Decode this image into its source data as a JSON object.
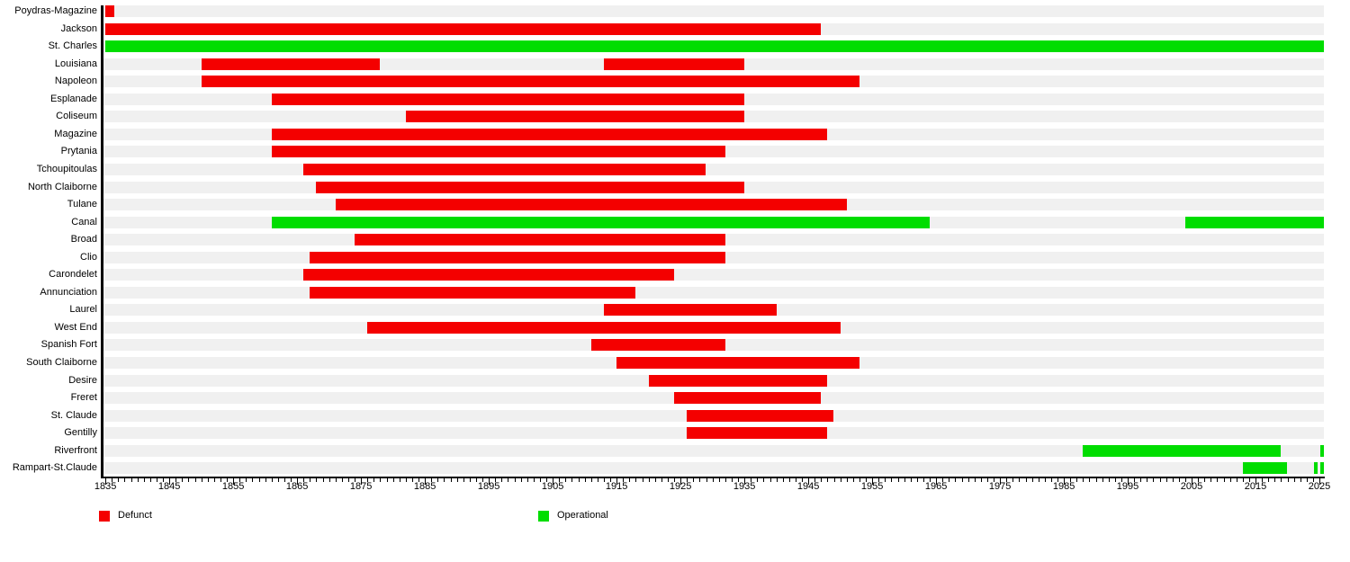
{
  "legend": {
    "defunct": {
      "label": "Defunct",
      "color": "#f40000"
    },
    "operational": {
      "label": "Operational",
      "color": "#00dd00"
    }
  },
  "chart_data": {
    "type": "bar",
    "subtype": "gantt-timeline",
    "title": "",
    "xlabel": "",
    "ylabel": "",
    "grid": false,
    "legend_position": "bottom",
    "axis": {
      "unit": "year",
      "plot_min": 1834.7,
      "plot_max": 2025.7,
      "major_tick_interval": 10,
      "minor_tick_interval": 1,
      "tick_labels": [
        "1835",
        "1845",
        "1855",
        "1865",
        "1875",
        "1885",
        "1895",
        "1905",
        "1915",
        "1925",
        "1935",
        "1945",
        "1955",
        "1965",
        "1975",
        "1985",
        "1995",
        "2005",
        "2015",
        "2025"
      ]
    },
    "rows": [
      {
        "label": "Poydras-Magazine",
        "segments": [
          {
            "start": 1835,
            "end": 1836.4,
            "status": "defunct"
          }
        ]
      },
      {
        "label": "Jackson",
        "segments": [
          {
            "start": 1835,
            "end": 1947,
            "status": "defunct"
          }
        ]
      },
      {
        "label": "St. Charles",
        "segments": [
          {
            "start": 1835,
            "end": "present",
            "status": "operational"
          }
        ]
      },
      {
        "label": "Louisiana",
        "segments": [
          {
            "start": 1850,
            "end": 1878,
            "status": "defunct"
          },
          {
            "start": 1913,
            "end": 1935,
            "status": "defunct"
          }
        ]
      },
      {
        "label": "Napoleon",
        "segments": [
          {
            "start": 1850,
            "end": 1953,
            "status": "defunct"
          }
        ]
      },
      {
        "label": "Esplanade",
        "segments": [
          {
            "start": 1861,
            "end": 1935,
            "status": "defunct"
          }
        ]
      },
      {
        "label": "Coliseum",
        "segments": [
          {
            "start": 1882,
            "end": 1935,
            "status": "defunct"
          }
        ]
      },
      {
        "label": "Magazine",
        "segments": [
          {
            "start": 1861,
            "end": 1948,
            "status": "defunct"
          }
        ]
      },
      {
        "label": "Prytania",
        "segments": [
          {
            "start": 1861,
            "end": 1932,
            "status": "defunct"
          }
        ]
      },
      {
        "label": "Tchoupitoulas",
        "segments": [
          {
            "start": 1866,
            "end": 1929,
            "status": "defunct"
          }
        ]
      },
      {
        "label": "North Claiborne",
        "segments": [
          {
            "start": 1868,
            "end": 1935,
            "status": "defunct"
          }
        ]
      },
      {
        "label": "Tulane",
        "segments": [
          {
            "start": 1871,
            "end": 1951,
            "status": "defunct"
          }
        ]
      },
      {
        "label": "Canal",
        "segments": [
          {
            "start": 1861,
            "end": 1964,
            "status": "operational"
          },
          {
            "start": 2004,
            "end": "present",
            "status": "operational"
          }
        ]
      },
      {
        "label": "Broad",
        "segments": [
          {
            "start": 1874,
            "end": 1932,
            "status": "defunct"
          }
        ]
      },
      {
        "label": "Clio",
        "segments": [
          {
            "start": 1867,
            "end": 1932,
            "status": "defunct"
          }
        ]
      },
      {
        "label": "Carondelet",
        "segments": [
          {
            "start": 1866,
            "end": 1924,
            "status": "defunct"
          }
        ]
      },
      {
        "label": "Annunciation",
        "segments": [
          {
            "start": 1867,
            "end": 1918,
            "status": "defunct"
          }
        ]
      },
      {
        "label": "Laurel",
        "segments": [
          {
            "start": 1913,
            "end": 1940,
            "status": "defunct"
          }
        ]
      },
      {
        "label": "West End",
        "segments": [
          {
            "start": 1876,
            "end": 1950,
            "status": "defunct"
          }
        ]
      },
      {
        "label": "Spanish Fort",
        "segments": [
          {
            "start": 1911,
            "end": 1932,
            "status": "defunct"
          }
        ]
      },
      {
        "label": "South Claiborne",
        "segments": [
          {
            "start": 1915,
            "end": 1953,
            "status": "defunct"
          }
        ]
      },
      {
        "label": "Desire",
        "segments": [
          {
            "start": 1920,
            "end": 1948,
            "status": "defunct"
          }
        ]
      },
      {
        "label": "Freret",
        "segments": [
          {
            "start": 1924,
            "end": 1947,
            "status": "defunct"
          }
        ]
      },
      {
        "label": "St. Claude",
        "segments": [
          {
            "start": 1926,
            "end": 1949,
            "status": "defunct"
          }
        ]
      },
      {
        "label": "Gentilly",
        "segments": [
          {
            "start": 1926,
            "end": 1948,
            "status": "defunct"
          }
        ]
      },
      {
        "label": "Riverfront",
        "segments": [
          {
            "start": 1988,
            "end": 2019,
            "status": "operational"
          },
          {
            "start": 2025.15,
            "end": "present",
            "status": "operational"
          }
        ]
      },
      {
        "label": "Rampart-St.Claude",
        "segments": [
          {
            "start": 2013,
            "end": 2020,
            "status": "operational"
          },
          {
            "start": 2024.2,
            "end": 2024.7,
            "status": "operational"
          },
          {
            "start": 2025.15,
            "end": "present",
            "status": "operational"
          }
        ]
      }
    ]
  }
}
